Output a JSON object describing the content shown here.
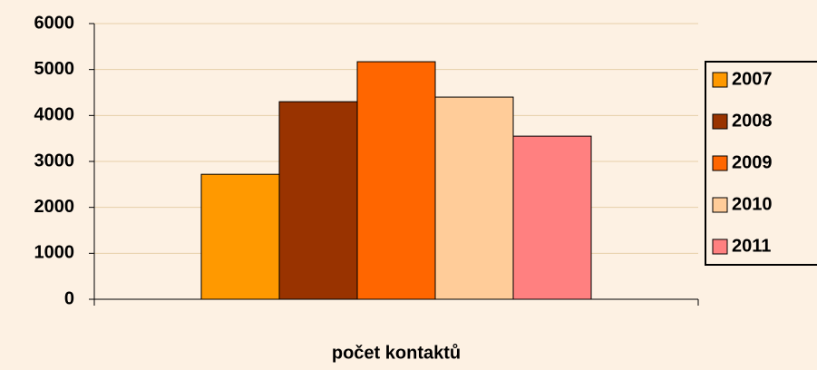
{
  "chart_data": {
    "type": "bar",
    "categories": [
      "počet kontaktů"
    ],
    "series": [
      {
        "name": "2007",
        "color": "#ff9900",
        "values": [
          2720
        ]
      },
      {
        "name": "2008",
        "color": "#993300",
        "values": [
          4300
        ]
      },
      {
        "name": "2009",
        "color": "#ff6600",
        "values": [
          5170
        ]
      },
      {
        "name": "2010",
        "color": "#ffcc99",
        "values": [
          4400
        ]
      },
      {
        "name": "2011",
        "color": "#ff8080",
        "values": [
          3550
        ]
      }
    ],
    "ylim": [
      0,
      6000
    ],
    "yticks": [
      0,
      1000,
      2000,
      3000,
      4000,
      5000,
      6000
    ],
    "grid": true,
    "legend": "right"
  }
}
